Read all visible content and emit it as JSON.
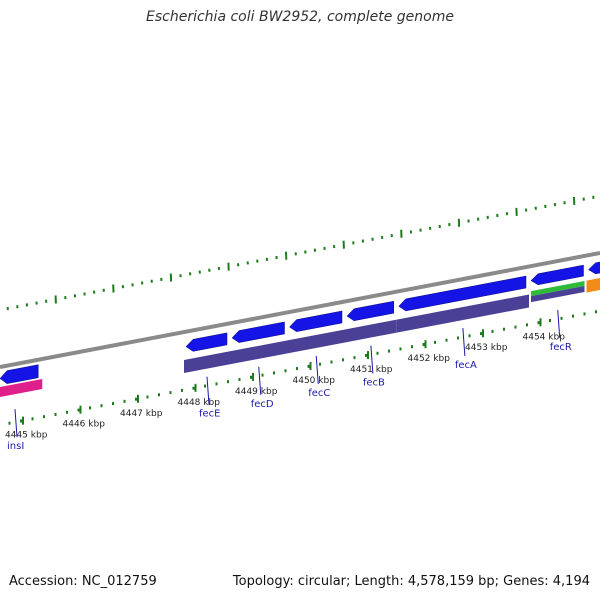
{
  "title": "Escherichia coli BW2952, complete genome",
  "footer": {
    "accession": "Accession: NC_012759",
    "summary": "Topology: circular; Length: 4,578,159 bp; Genes: 4,194"
  },
  "colors": {
    "cds": "#1414e6",
    "gene": "#4a4096",
    "is_element": "#e0208a",
    "regulatory_green": "#2fba3a",
    "regulatory_orange": "#f28c18",
    "tick": "#1f7a1f",
    "backbone": "#8a8a8a",
    "label": "#1a1aa8"
  },
  "chart_data": {
    "type": "genome_map",
    "view_kbp": [
      4444.6,
      4455.1
    ],
    "ticks_kbp": [
      4445,
      4446,
      4447,
      4448,
      4449,
      4450,
      4451,
      4452,
      4453,
      4454
    ],
    "tick_labels": [
      "4445 kbp",
      "4446 kbp",
      "4447 kbp",
      "4448 kbp",
      "4449 kbp",
      "4450 kbp",
      "4451 kbp",
      "4452 kbp",
      "4453 kbp",
      "4454 kbp"
    ],
    "genes": [
      {
        "name": "insI",
        "start_kbp": 4444.6,
        "end_kbp": 4445.3,
        "strand": "-",
        "type": "is"
      },
      {
        "name": "fecE",
        "start_kbp": 4447.8,
        "end_kbp": 4448.6,
        "strand": "-",
        "type": "cds"
      },
      {
        "name": "fecD",
        "start_kbp": 4448.6,
        "end_kbp": 4449.6,
        "strand": "-",
        "type": "cds"
      },
      {
        "name": "fecC",
        "start_kbp": 4449.6,
        "end_kbp": 4450.6,
        "strand": "-",
        "type": "cds"
      },
      {
        "name": "fecB",
        "start_kbp": 4450.6,
        "end_kbp": 4451.5,
        "strand": "-",
        "type": "cds"
      },
      {
        "name": "fecA",
        "start_kbp": 4451.5,
        "end_kbp": 4453.8,
        "strand": "-",
        "type": "cds"
      },
      {
        "name": "fecR",
        "start_kbp": 4453.8,
        "end_kbp": 4454.8,
        "strand": "-",
        "type": "regulatory"
      },
      {
        "name": "",
        "start_kbp": 4454.8,
        "end_kbp": 4455.1,
        "strand": "-",
        "type": "cds_orange"
      }
    ]
  }
}
